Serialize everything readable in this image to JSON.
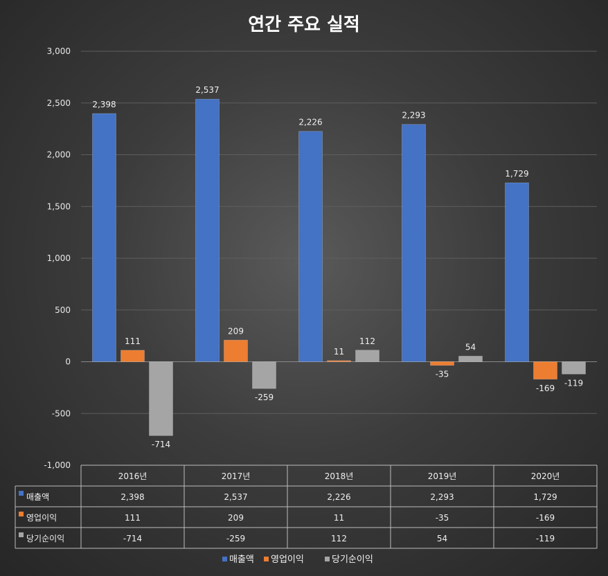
{
  "chart_data": {
    "type": "bar",
    "title": "연간 주요 실적",
    "categories": [
      "2016년",
      "2017년",
      "2018년",
      "2019년",
      "2020년"
    ],
    "series": [
      {
        "name": "매출액",
        "color": "#4472C4",
        "values": [
          2398,
          2537,
          2226,
          2293,
          1729
        ],
        "labels": [
          "2,398",
          "2,537",
          "2,226",
          "2,293",
          "1,729"
        ]
      },
      {
        "name": "영업이익",
        "color": "#ED7D31",
        "values": [
          111,
          209,
          11,
          -35,
          -169
        ],
        "labels": [
          "111",
          "209",
          "11",
          "-35",
          "-169"
        ]
      },
      {
        "name": "당기순이익",
        "color": "#A5A5A5",
        "values": [
          -714,
          -259,
          112,
          54,
          -119
        ],
        "labels": [
          "-714",
          "-259",
          "112",
          "54",
          "-119"
        ]
      }
    ],
    "ylim": [
      -1000,
      3000
    ],
    "yticks": [
      3000,
      2500,
      2000,
      1500,
      1000,
      500,
      0,
      -500,
      -1000
    ],
    "ytick_labels": [
      "3,000",
      "2,500",
      "2,000",
      "1,500",
      "1,000",
      "500",
      "0",
      "-500",
      "-1,000"
    ],
    "grid": true,
    "legend": "bottom",
    "data_table": true
  }
}
